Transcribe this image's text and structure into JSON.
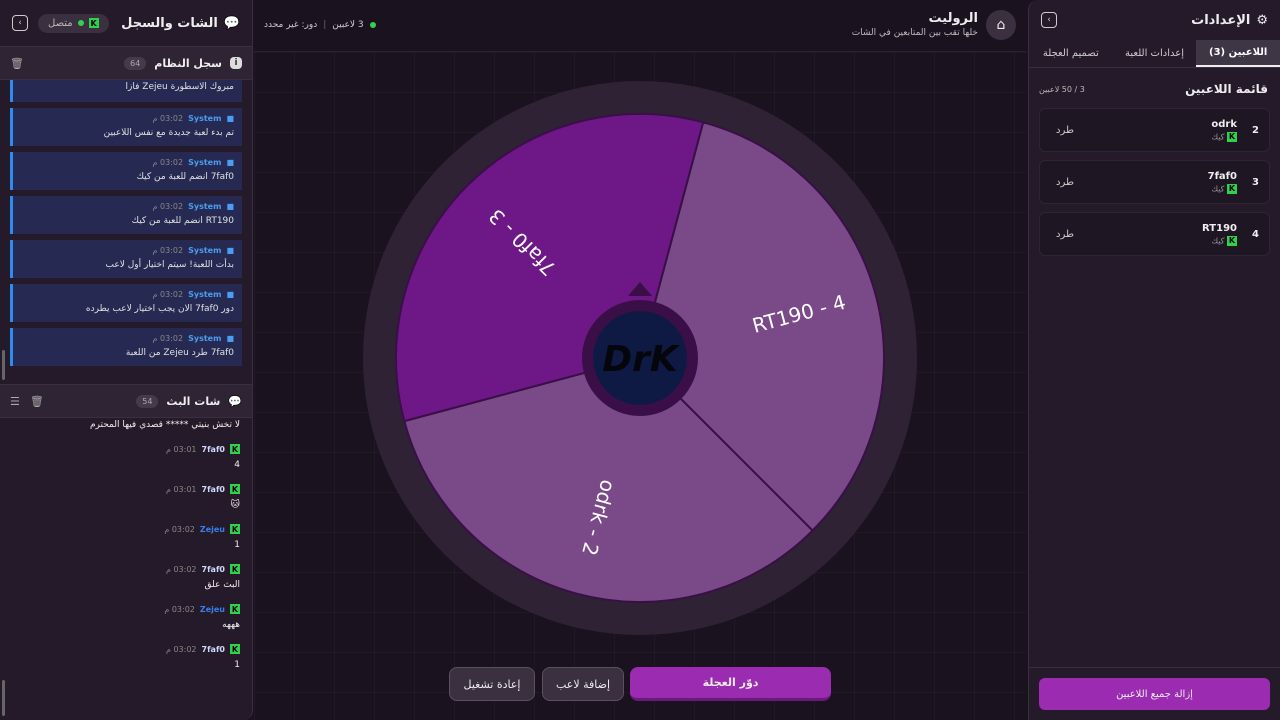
{
  "left": {
    "title": "الشات والسجل",
    "status": "متصل",
    "log": {
      "title": "سجل النظام",
      "count": "64",
      "items": [
        {
          "sender": "",
          "time": "",
          "text": "مبروك الاسطورة Zejeu فازا"
        },
        {
          "sender": "System",
          "time": "03:02 م",
          "text": "تم بدء لعبة جديدة مع نفس اللاعبين"
        },
        {
          "sender": "System",
          "time": "03:02 م",
          "text": "7faf0 انضم للعبة من كيك"
        },
        {
          "sender": "System",
          "time": "03:02 م",
          "text": "RT190 انضم للعبة من كيك"
        },
        {
          "sender": "System",
          "time": "03:02 م",
          "text": "بدأت اللعبة! سيتم اختيار أول لاعب"
        },
        {
          "sender": "System",
          "time": "03:02 م",
          "text": "دور 7faf0 الان يجب اختيار لاعب يطرده"
        },
        {
          "sender": "System",
          "time": "03:02 م",
          "text": "7faf0 طرد Zejeu من اللعبة"
        }
      ]
    },
    "chat": {
      "title": "شات البث",
      "count": "54",
      "first": "لا تخش بنيتي ***** قصدي فيها المحترم",
      "items": [
        {
          "user": "7faf0",
          "color": "#cfd8ff",
          "time": "03:01 م",
          "text": "4"
        },
        {
          "user": "7faf0",
          "color": "#cfd8ff",
          "time": "03:01 م",
          "text": "🐱"
        },
        {
          "user": "Zejeu",
          "color": "#3a7ee8",
          "time": "03:02 م",
          "text": "1"
        },
        {
          "user": "7faf0",
          "color": "#cfd8ff",
          "time": "03:02 م",
          "text": "البث علق"
        },
        {
          "user": "Zejeu",
          "color": "#3a7ee8",
          "time": "03:02 م",
          "text": "هههه"
        },
        {
          "user": "7faf0",
          "color": "#cfd8ff",
          "time": "03:02 م",
          "text": "1"
        }
      ]
    }
  },
  "header": {
    "title": "الروليت",
    "subtitle": "خلها تقب بين المتابعين في الشات",
    "players": "3 لاعبين",
    "turn": "دور: غير محدد"
  },
  "wheel": {
    "logo": "DrK",
    "slices": [
      {
        "label": "RT190 - 4",
        "color": "#7a4a88"
      },
      {
        "label": "odrk - 2",
        "color": "#7a4a88"
      },
      {
        "label": "7faf0 - 3",
        "color": "#6e1786"
      }
    ]
  },
  "buttons": {
    "spin": "دوّر العجلة",
    "add": "إضافة لاعب",
    "restart": "إعادة تشغيل"
  },
  "right": {
    "title": "الإعدادات",
    "tabs": [
      "اللاعبين (3)",
      "إعدادات اللعبة",
      "تصميم العجلة"
    ],
    "list_title": "قائمة اللاعبين",
    "list_count": "3 / 50 لاعبين",
    "players": [
      {
        "num": "2",
        "name": "odrk",
        "platform": "كيك",
        "kick": "طرد"
      },
      {
        "num": "3",
        "name": "7faf0",
        "platform": "كيك",
        "kick": "طرد"
      },
      {
        "num": "4",
        "name": "RT190",
        "platform": "كيك",
        "kick": "طرد"
      }
    ],
    "remove_all": "إزالة جميع اللاعبين"
  },
  "colors": {
    "accent": "#9b2bb0",
    "kick_green": "#2fd04a",
    "system_blue": "#2e8cf0"
  }
}
